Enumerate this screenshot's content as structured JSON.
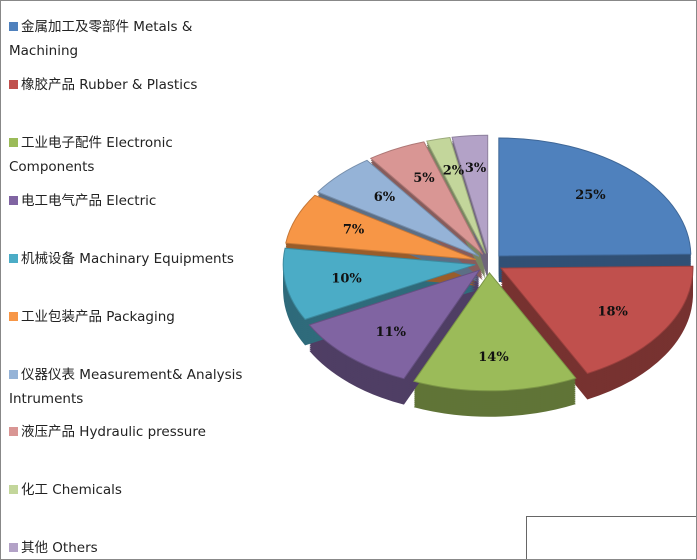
{
  "chart_data": {
    "type": "pie",
    "categories": [
      "金属加工及零部件 Metals & Machining",
      "橡胶产品 Rubber & Plastics",
      "工业电子配件 Electronic Components",
      "电工电气产品  Electric",
      "机械设备 Machinary Equipments",
      "工业包装产品 Packaging",
      "仪器仪表 Measurement& Analysis Intruments",
      "液压产品 Hydraulic pressure",
      "化工 Chemicals",
      "其他 Others"
    ],
    "values": [
      25,
      18,
      14,
      11,
      10,
      7,
      6,
      5,
      2,
      3
    ],
    "value_labels": [
      "25%",
      "18%",
      "14%",
      "11%",
      "10%",
      "7%",
      "6%",
      "5%",
      "2%",
      "3%"
    ],
    "colors": [
      "#4f81bd",
      "#c0504d",
      "#9bbb59",
      "#8064a2",
      "#4bacc6",
      "#f79646",
      "#95b3d7",
      "#d99694",
      "#c3d69b",
      "#b3a2c7"
    ],
    "legend": "left"
  }
}
